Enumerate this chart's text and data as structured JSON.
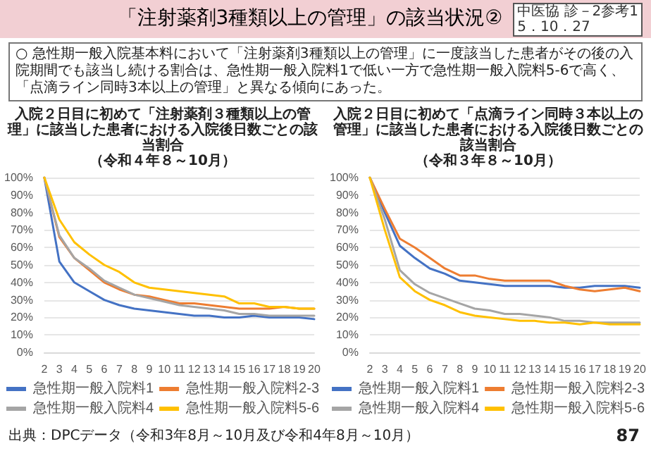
{
  "chart_data": [
    {
      "type": "line",
      "title": "入院２日目に初めて「注射薬剤３種類以上の管理」に該当した患者における入院後日数ごとの該当割合",
      "subtitle": "（令和４年８～10月）",
      "annotations": [
        "「注射薬剤3種類以上の管理」の該当状況②",
        "中医協 診－2参考1",
        "5．10．27",
        "○ 急性期一般入院基本料において「注射薬剤3種類以上の管理」に一度該当した患者がその後の入院期間でも該当し続ける割合は、急性期一般入院料1で低い一方で急性期一般入院料5-6で高く、「点滴ライン同時3本以上の管理」と異なる傾向にあった。"
      ],
      "categories": [
        "2",
        "3",
        "4",
        "5",
        "6",
        "7",
        "8",
        "9",
        "10",
        "11",
        "12",
        "13",
        "14",
        "15",
        "16",
        "17",
        "18",
        "19",
        "20"
      ],
      "series": [
        {
          "name": "急性期一般入院料1",
          "color": "#4472c4",
          "values": [
            100,
            52,
            40,
            35,
            30,
            27,
            25,
            24,
            23,
            22,
            21,
            21,
            20,
            20,
            21,
            20,
            20,
            20,
            19
          ]
        },
        {
          "name": "急性期一般入院料2-3",
          "color": "#ed7d31",
          "values": [
            100,
            66,
            54,
            47,
            40,
            36,
            33,
            32,
            30,
            28,
            28,
            27,
            26,
            25,
            25,
            25,
            26,
            25,
            25
          ]
        },
        {
          "name": "急性期一般入院料4",
          "color": "#a5a5a5",
          "values": [
            100,
            67,
            54,
            48,
            41,
            37,
            33,
            31,
            29,
            27,
            26,
            25,
            24,
            22,
            22,
            21,
            21,
            21,
            21
          ]
        },
        {
          "name": "急性期一般入院料5-6",
          "color": "#ffc000",
          "values": [
            100,
            76,
            63,
            56,
            50,
            46,
            40,
            37,
            36,
            35,
            34,
            33,
            32,
            28,
            28,
            26,
            26,
            25,
            25
          ]
        }
      ],
      "ylim": [
        0,
        100
      ],
      "yticks": [
        {
          "value": 0,
          "label": "0%"
        },
        {
          "value": 10,
          "label": "10%"
        },
        {
          "value": 20,
          "label": "20%"
        },
        {
          "value": 30,
          "label": "30%"
        },
        {
          "value": 40,
          "label": "40%"
        },
        {
          "value": 50,
          "label": "50%"
        },
        {
          "value": 60,
          "label": "60%"
        },
        {
          "value": 70,
          "label": "70%"
        },
        {
          "value": 80,
          "label": "80%"
        },
        {
          "value": 90,
          "label": "90%"
        },
        {
          "value": 100,
          "label": "100%"
        }
      ],
      "grid": "y",
      "legend": "bottom",
      "marker": "none"
    },
    {
      "type": "line",
      "title": "入院２日目に初めて「点滴ライン同時３本以上の管理」に該当した患者における入院後日数ごとの該当割合",
      "subtitle": "（令和３年８～10月）",
      "annotations": [
        "出典：DPCデータ（令和3年8月～10月及び令和4年8月～10月）",
        "87"
      ],
      "categories": [
        "2",
        "3",
        "4",
        "5",
        "6",
        "7",
        "8",
        "9",
        "10",
        "11",
        "12",
        "13",
        "14",
        "15",
        "16",
        "17",
        "18",
        "19",
        "20"
      ],
      "series": [
        {
          "name": "急性期一般入院料1",
          "color": "#4472c4",
          "values": [
            100,
            80,
            61,
            54,
            48,
            45,
            41,
            40,
            39,
            38,
            38,
            38,
            38,
            37,
            37,
            38,
            38,
            38,
            37
          ]
        },
        {
          "name": "急性期一般入院料2-3",
          "color": "#ed7d31",
          "values": [
            100,
            82,
            65,
            60,
            54,
            48,
            44,
            44,
            42,
            41,
            41,
            41,
            41,
            38,
            36,
            35,
            36,
            37,
            35
          ]
        },
        {
          "name": "急性期一般入院料4",
          "color": "#a5a5a5",
          "values": [
            100,
            76,
            47,
            39,
            34,
            31,
            28,
            25,
            24,
            22,
            22,
            21,
            20,
            18,
            18,
            17,
            17,
            17,
            17
          ]
        },
        {
          "name": "急性期一般入院料5-6",
          "color": "#ffc000",
          "values": [
            100,
            70,
            43,
            35,
            30,
            27,
            23,
            21,
            20,
            19,
            18,
            18,
            17,
            17,
            16,
            17,
            16,
            16,
            16
          ]
        }
      ],
      "ylim": [
        0,
        100
      ],
      "yticks": [
        {
          "value": 0,
          "label": "0%"
        },
        {
          "value": 10,
          "label": "10%"
        },
        {
          "value": 20,
          "label": "20%"
        },
        {
          "value": 30,
          "label": "30%"
        },
        {
          "value": 40,
          "label": "40%"
        },
        {
          "value": 50,
          "label": "50%"
        },
        {
          "value": 60,
          "label": "60%"
        },
        {
          "value": 70,
          "label": "70%"
        },
        {
          "value": 80,
          "label": "80%"
        },
        {
          "value": 90,
          "label": "90%"
        },
        {
          "value": 100,
          "label": "100%"
        }
      ],
      "grid": "y",
      "legend": "bottom",
      "marker": "none"
    }
  ]
}
